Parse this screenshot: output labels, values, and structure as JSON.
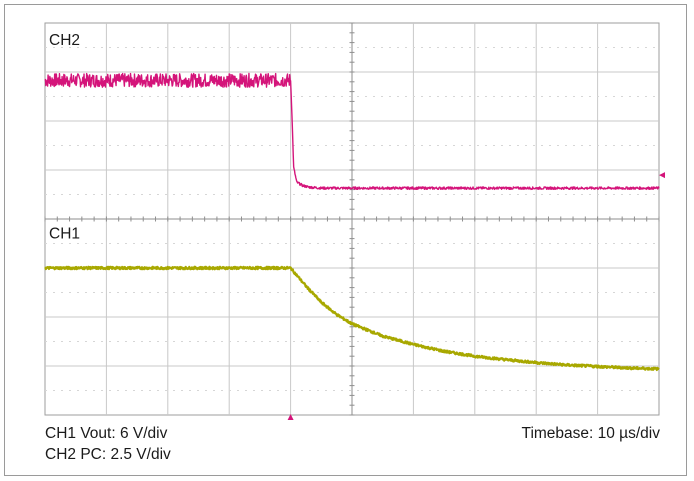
{
  "chart_data": {
    "type": "line",
    "title": "",
    "grid": true,
    "divisions": {
      "x": 10,
      "y": 8
    },
    "x_units": "divisions",
    "y_units": "divisions",
    "trigger_x": 4,
    "series": [
      {
        "name": "CH2",
        "label": "CH2",
        "color": "#d4147a",
        "description": "PC signal: high with ripple, then steps down at trigger",
        "x": [
          0,
          1,
          2,
          3,
          3.9,
          4.0,
          4.02,
          4.05,
          4.1,
          4.2,
          4.3,
          4.5,
          5,
          6,
          7,
          8,
          9,
          10
        ],
        "y": [
          6.83,
          6.83,
          6.83,
          6.83,
          6.83,
          6.83,
          6.2,
          5.05,
          4.75,
          4.68,
          4.65,
          4.63,
          4.63,
          4.63,
          4.63,
          4.63,
          4.63,
          4.63
        ]
      },
      {
        "name": "CH1",
        "label": "CH1",
        "color": "#a8a800",
        "description": "Vout: constant, then exponential decay after trigger",
        "x": [
          0,
          1,
          2,
          3,
          4,
          4.25,
          4.5,
          4.75,
          5,
          5.5,
          6,
          6.5,
          7,
          7.5,
          8,
          8.5,
          9,
          9.5,
          10
        ],
        "y": [
          3.0,
          3.0,
          3.0,
          3.0,
          3.0,
          2.63,
          2.3,
          2.05,
          1.86,
          1.61,
          1.44,
          1.3,
          1.2,
          1.13,
          1.07,
          1.02,
          0.99,
          0.96,
          0.94
        ]
      }
    ]
  },
  "captions": {
    "ch1": "CH1 Vout: 6 V/div",
    "ch2": "CH2 PC: 2.5 V/div",
    "timebase": "Timebase: 10 µs/div"
  }
}
